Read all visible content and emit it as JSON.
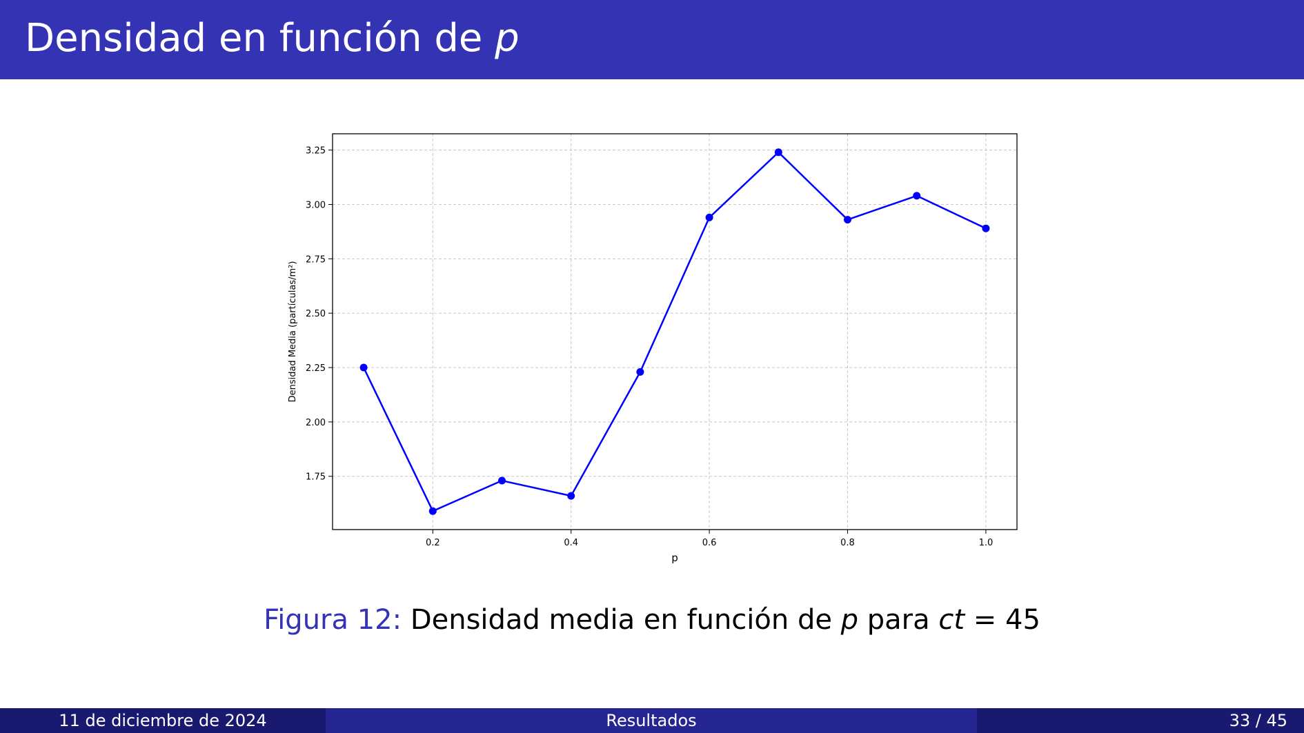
{
  "slide": {
    "title_text": "Densidad en función de",
    "title_var": "p"
  },
  "caption": {
    "label": "Figura 12:",
    "text_before": "Densidad media en función de",
    "var_p": "p",
    "text_mid": "para",
    "var_ct": "ct",
    "text_after": "= 45"
  },
  "footer": {
    "date": "11 de diciembre de 2024",
    "section": "Resultados",
    "page": "33 / 45"
  },
  "colors": {
    "title_bar": "#3333b3",
    "series_line": "#0000ff",
    "grid": "#c8c8c8"
  },
  "chart_data": {
    "type": "line",
    "title": "",
    "xlabel": "p",
    "ylabel": "Densidad Media (partículas/m²)",
    "xlim": [
      0.055,
      1.045
    ],
    "ylim": [
      1.505,
      3.325
    ],
    "x_ticks": [
      0.2,
      0.4,
      0.6,
      0.8,
      1.0
    ],
    "x_tick_labels": [
      "0.2",
      "0.4",
      "0.6",
      "0.8",
      "1.0"
    ],
    "y_ticks": [
      1.75,
      2.0,
      2.25,
      2.5,
      2.75,
      3.0,
      3.25
    ],
    "y_tick_labels": [
      "1.75",
      "2.00",
      "2.25",
      "2.50",
      "2.75",
      "3.00",
      "3.25"
    ],
    "grid": true,
    "marker": "circle",
    "series": [
      {
        "x": [
          0.1,
          0.2,
          0.3,
          0.4,
          0.5,
          0.6,
          0.7,
          0.8,
          0.9,
          1.0
        ],
        "y": [
          2.25,
          1.59,
          1.73,
          1.66,
          2.23,
          2.94,
          3.24,
          2.93,
          3.04,
          2.89
        ]
      }
    ]
  }
}
